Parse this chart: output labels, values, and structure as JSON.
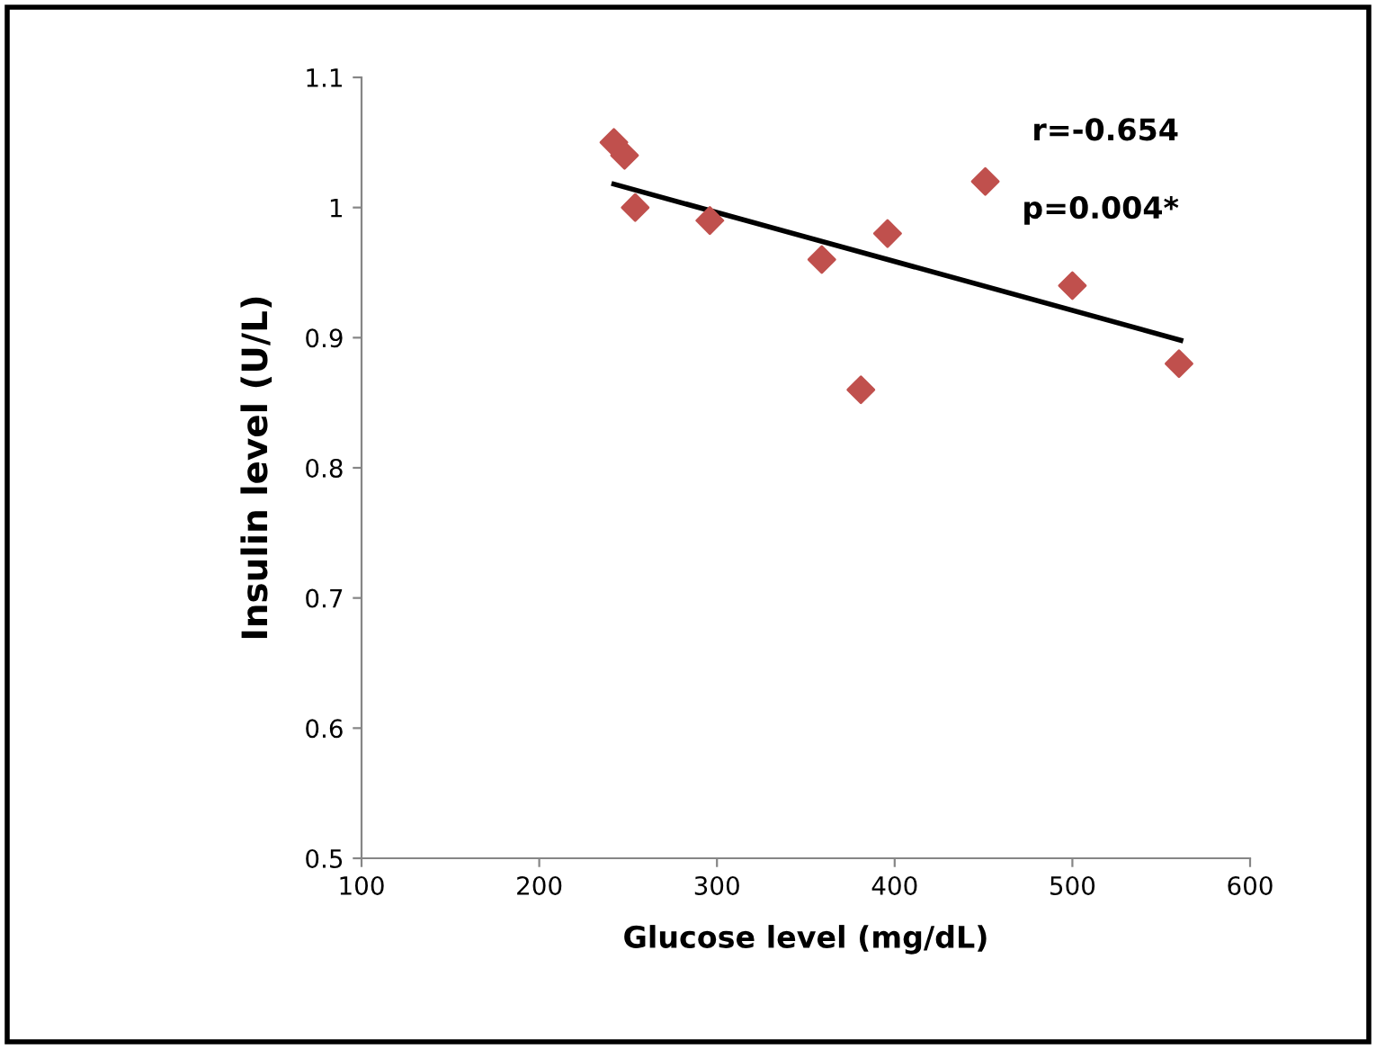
{
  "chart_data": {
    "type": "scatter",
    "xlabel": "Glucose level (mg/dL)",
    "ylabel": "Insulin level (U/L)",
    "annotations": [
      "r=-0.654",
      "p=0.004*"
    ],
    "series": [
      {
        "color": "#c0504d",
        "marker": "diamond",
        "x": [
          242,
          248,
          254,
          296,
          359,
          381,
          396,
          451,
          500,
          560
        ],
        "values": [
          1.05,
          1.04,
          1.0,
          0.99,
          0.96,
          0.86,
          0.98,
          1.02,
          0.94,
          0.88
        ]
      },
      {
        "type": "line",
        "color": "#000000",
        "x": [
          242,
          561
        ],
        "values": [
          1.018,
          0.898
        ]
      }
    ],
    "xlim": [
      100,
      600
    ],
    "xticks": [
      100,
      200,
      300,
      400,
      500,
      600
    ],
    "ylim": [
      0.5,
      1.1
    ],
    "yticks": [
      {
        "value": 0.5,
        "label": "0.5"
      },
      {
        "value": 0.6,
        "label": "0.6"
      },
      {
        "value": 0.7,
        "label": "0.7"
      },
      {
        "value": 0.8,
        "label": "0.8"
      },
      {
        "value": 0.9,
        "label": "0.9"
      },
      {
        "value": 1.0,
        "label": "1"
      },
      {
        "value": 1.1,
        "label": "1.1"
      }
    ],
    "grid": false,
    "legend": false
  }
}
